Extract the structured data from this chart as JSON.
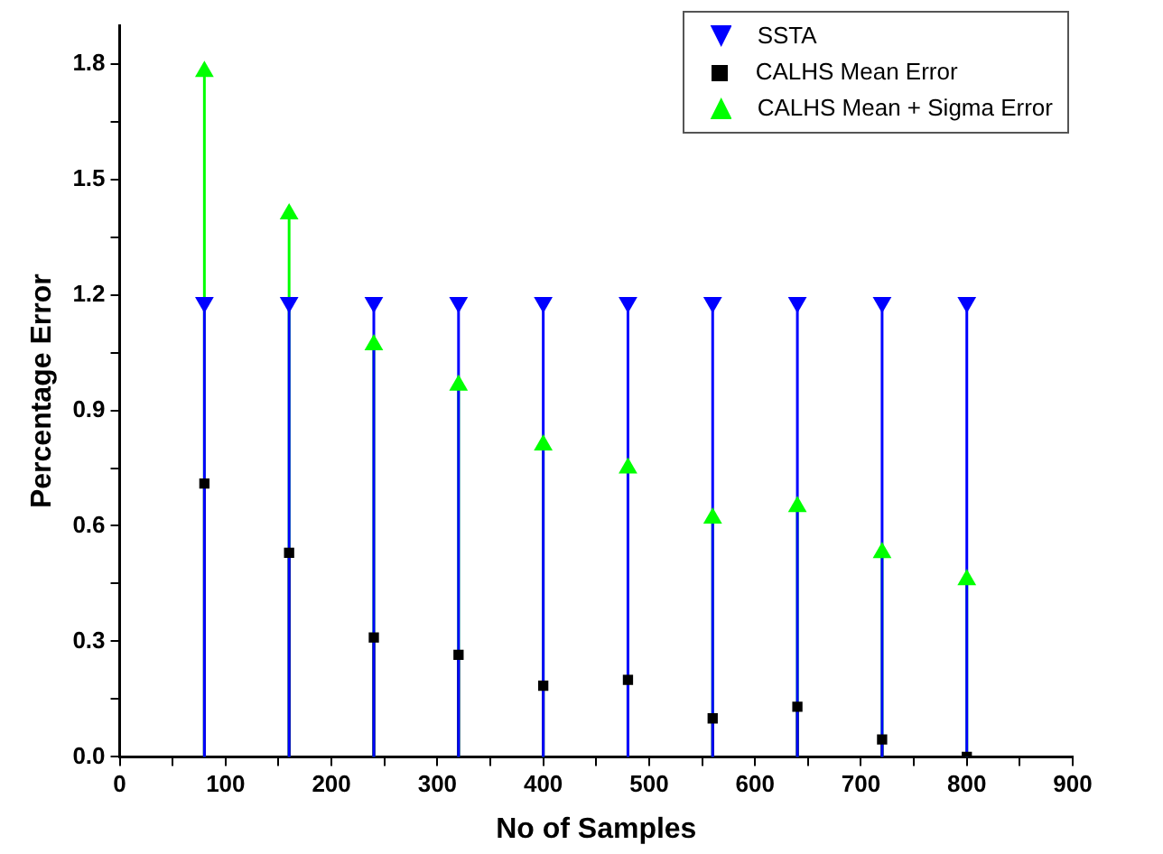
{
  "chart_data": {
    "type": "lollipop",
    "xlabel": "No of Samples",
    "ylabel": "Percentage Error",
    "x": [
      80,
      160,
      240,
      320,
      400,
      480,
      560,
      640,
      720,
      800
    ],
    "series": [
      {
        "name": "SSTA",
        "color": "#0000ff",
        "marker": "triangle-down",
        "values": [
          1.18,
          1.18,
          1.18,
          1.18,
          1.18,
          1.18,
          1.18,
          1.18,
          1.18,
          1.18
        ]
      },
      {
        "name": "CALHS Mean Error",
        "color": "#000000",
        "marker": "square",
        "values": [
          0.71,
          0.53,
          0.31,
          0.265,
          0.185,
          0.2,
          0.1,
          0.13,
          0.045,
          0
        ]
      },
      {
        "name": "CALHS Mean + Sigma Error",
        "color": "#00ff00",
        "marker": "triangle",
        "values": [
          1.78,
          1.41,
          1.07,
          0.965,
          0.81,
          0.75,
          0.62,
          0.65,
          0.53,
          0.46
        ]
      }
    ],
    "xlim": [
      0,
      900
    ],
    "xticks": [
      0,
      {
        "value": 50,
        "label": null
      },
      100,
      {
        "value": 150,
        "label": null
      },
      200,
      {
        "value": 250,
        "label": null
      },
      300,
      {
        "value": 350,
        "label": null
      },
      400,
      {
        "value": 450,
        "label": null
      },
      500,
      {
        "value": 550,
        "label": null
      },
      600,
      {
        "value": 650,
        "label": null
      },
      700,
      {
        "value": 750,
        "label": null
      },
      800,
      {
        "value": 850,
        "label": null
      },
      900
    ],
    "ylim": [
      0,
      1.9
    ],
    "yticks": [
      {
        "value": 0,
        "label": "0.0"
      },
      {
        "value": 0.15,
        "label": null
      },
      0.3,
      {
        "value": 0.45,
        "label": null
      },
      0.6,
      {
        "value": 0.75,
        "label": null
      },
      0.9,
      {
        "value": 1.05,
        "label": null
      },
      1.2,
      {
        "value": 1.35,
        "label": null
      },
      1.5,
      {
        "value": 1.65,
        "label": null
      },
      1.8
    ],
    "grid": false,
    "legend": "top right"
  }
}
